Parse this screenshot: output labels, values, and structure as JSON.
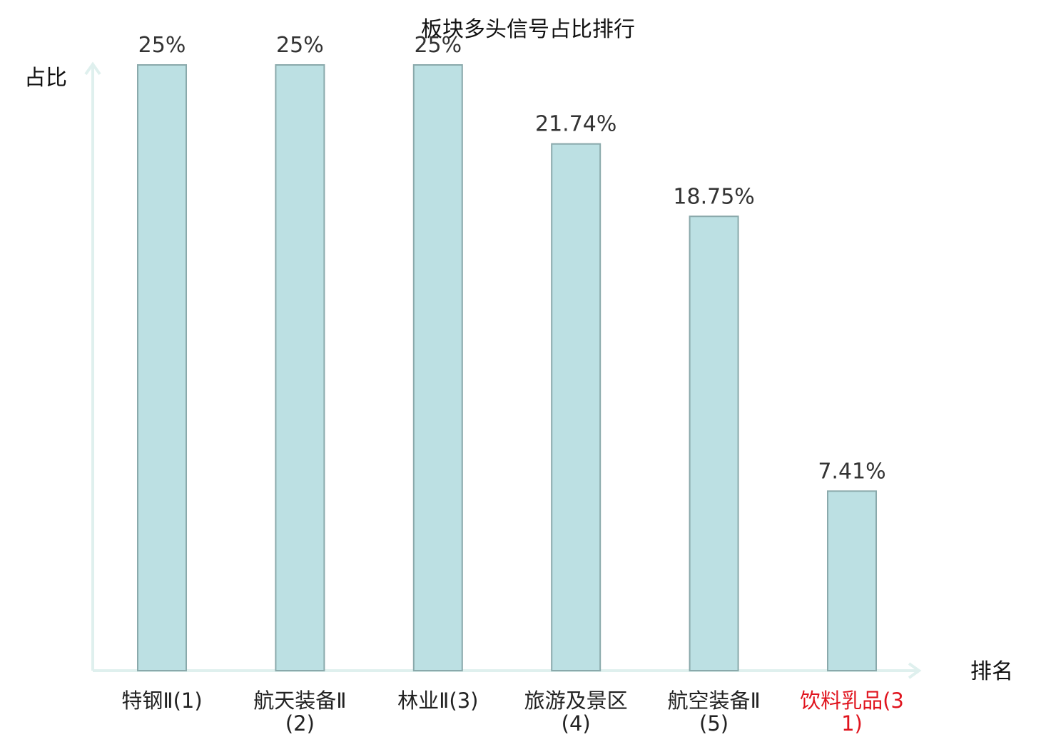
{
  "chart_data": {
    "type": "bar",
    "title": "板块多头信号占比排行",
    "xlabel": "排名",
    "ylabel": "占比",
    "categories": [
      "特钢Ⅱ(1)",
      "航天装备Ⅱ(2)",
      "林业Ⅱ(3)",
      "旅游及景区(4)",
      "航空装备Ⅱ(5)",
      "饮料乳品(31)"
    ],
    "values": [
      25,
      25,
      25,
      21.74,
      18.75,
      7.41
    ],
    "value_labels": [
      "25%",
      "25%",
      "25%",
      "21.74%",
      "18.75%",
      "7.41%"
    ],
    "highlighted_category": "饮料乳品(31)",
    "ylim": [
      0,
      25
    ],
    "grid": false,
    "legend": "none",
    "colors": {
      "bar_fill": "#bce0e3",
      "bar_stroke": "#8aa9ab",
      "axis": "#dff0ee",
      "highlight_text": "#e0141e",
      "label_text": "#222222",
      "value_text": "#333333"
    }
  }
}
